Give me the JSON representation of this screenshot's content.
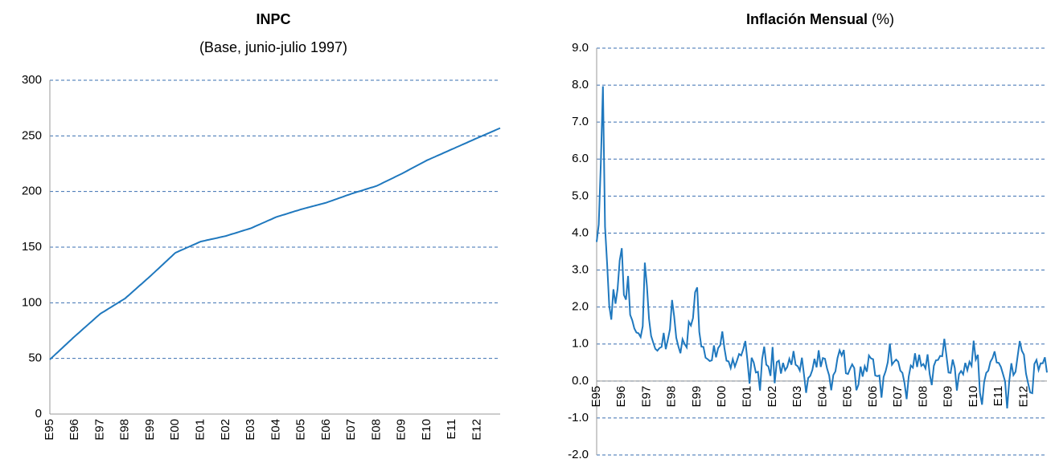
{
  "chart_data": [
    {
      "type": "line",
      "title": "INPC",
      "subtitle": "(Base, junio-julio 1997)",
      "categories": [
        "E95",
        null,
        null,
        null,
        null,
        null,
        null,
        null,
        null,
        null,
        null,
        null,
        "E96",
        null,
        null,
        null,
        null,
        null,
        null,
        null,
        null,
        null,
        null,
        null,
        "E97",
        null,
        null,
        null,
        null,
        null,
        null,
        null,
        null,
        null,
        null,
        null,
        "E98",
        null,
        null,
        null,
        null,
        null,
        null,
        null,
        null,
        null,
        null,
        null,
        "E99",
        null,
        null,
        null,
        null,
        null,
        null,
        null,
        null,
        null,
        null,
        null,
        "E00",
        null,
        null,
        null,
        null,
        null,
        null,
        null,
        null,
        null,
        null,
        null,
        "E01",
        null,
        null,
        null,
        null,
        null,
        null,
        null,
        null,
        null,
        null,
        null,
        "E02",
        null,
        null,
        null,
        null,
        null,
        null,
        null,
        null,
        null,
        null,
        null,
        "E03",
        null,
        null,
        null,
        null,
        null,
        null,
        null,
        null,
        null,
        null,
        null,
        "E04",
        null,
        null,
        null,
        null,
        null,
        null,
        null,
        null,
        null,
        null,
        null,
        "E05",
        null,
        null,
        null,
        null,
        null,
        null,
        null,
        null,
        null,
        null,
        null,
        "E06",
        null,
        null,
        null,
        null,
        null,
        null,
        null,
        null,
        null,
        null,
        null,
        "E07",
        null,
        null,
        null,
        null,
        null,
        null,
        null,
        null,
        null,
        null,
        null,
        "E08",
        null,
        null,
        null,
        null,
        null,
        null,
        null,
        null,
        null,
        null,
        null,
        "E09",
        null,
        null,
        null,
        null,
        null,
        null,
        null,
        null,
        null,
        null,
        null,
        "E10",
        null,
        null,
        null,
        null,
        null,
        null,
        null,
        null,
        null,
        null,
        null,
        "E11",
        null,
        null,
        null,
        null,
        null,
        null,
        null,
        null,
        null,
        null,
        null,
        "E12",
        null,
        null,
        null,
        null,
        null,
        null,
        null,
        null,
        null,
        null,
        null
      ],
      "values": [
        49,
        50.8,
        52.5,
        54.3,
        56,
        57.8,
        59.5,
        61.3,
        63,
        64.8,
        66.5,
        68.3,
        70,
        71.7,
        73.3,
        75,
        76.7,
        78.3,
        80,
        81.7,
        83.3,
        85,
        86.7,
        88.3,
        90,
        91.2,
        92.3,
        93.5,
        94.7,
        95.8,
        97,
        98.2,
        99.3,
        100.5,
        101.7,
        102.8,
        104,
        105.7,
        107.3,
        109,
        110.7,
        112.3,
        114,
        115.7,
        117.3,
        119,
        120.7,
        122.3,
        124,
        125.8,
        127.5,
        129.3,
        131,
        132.8,
        134.5,
        136.3,
        138,
        139.8,
        141.5,
        143.3,
        145,
        145.8,
        146.7,
        147.5,
        148.3,
        149.2,
        150,
        150.8,
        151.7,
        152.5,
        153.3,
        154.2,
        155,
        155.4,
        155.8,
        156.3,
        156.7,
        157.1,
        157.5,
        157.9,
        158.3,
        158.8,
        159.2,
        159.6,
        160,
        160.6,
        161.2,
        161.8,
        162.3,
        162.9,
        163.5,
        164.1,
        164.7,
        165.3,
        165.8,
        166.4,
        167,
        167.8,
        168.7,
        169.5,
        170.3,
        171.2,
        172,
        172.8,
        173.7,
        174.5,
        175.3,
        176.2,
        177,
        177.6,
        178.2,
        178.8,
        179.3,
        179.9,
        180.5,
        181.1,
        181.7,
        182.3,
        182.8,
        183.4,
        184,
        184.5,
        185,
        185.5,
        186,
        186.5,
        187,
        187.5,
        188,
        188.5,
        189,
        189.5,
        190,
        190.7,
        191.3,
        192,
        192.7,
        193.3,
        194,
        194.7,
        195.3,
        196,
        196.7,
        197.3,
        198,
        198.6,
        199.2,
        199.8,
        200.3,
        200.9,
        201.5,
        202.1,
        202.7,
        203.3,
        203.8,
        204.4,
        205,
        205.9,
        206.8,
        207.8,
        208.7,
        209.6,
        210.5,
        211.4,
        212.3,
        213.3,
        214.2,
        215.1,
        216,
        217,
        218,
        219,
        220,
        221,
        222,
        223,
        224,
        225,
        226,
        227,
        228,
        228.8,
        229.7,
        230.5,
        231.3,
        232.2,
        233,
        233.8,
        234.7,
        235.5,
        236.3,
        237.2,
        238,
        238.8,
        239.7,
        240.5,
        241.3,
        242.2,
        243,
        243.8,
        244.7,
        245.5,
        246.3,
        247.2,
        248,
        248.8,
        249.6,
        250.5,
        251.3,
        252.1,
        252.9,
        253.7,
        254.5,
        255.4,
        256.2,
        257
      ],
      "color": "#1f78be",
      "ylim": [
        0,
        300
      ],
      "yticks": [
        0,
        50,
        100,
        150,
        200,
        250,
        300
      ],
      "grid": true
    },
    {
      "type": "line",
      "title": "Inflación Mensual",
      "title_unit": "(%)",
      "categories": [
        "E95",
        null,
        null,
        null,
        null,
        null,
        null,
        null,
        null,
        null,
        null,
        null,
        "E96",
        null,
        null,
        null,
        null,
        null,
        null,
        null,
        null,
        null,
        null,
        null,
        "E97",
        null,
        null,
        null,
        null,
        null,
        null,
        null,
        null,
        null,
        null,
        null,
        "E98",
        null,
        null,
        null,
        null,
        null,
        null,
        null,
        null,
        null,
        null,
        null,
        "E99",
        null,
        null,
        null,
        null,
        null,
        null,
        null,
        null,
        null,
        null,
        null,
        "E00",
        null,
        null,
        null,
        null,
        null,
        null,
        null,
        null,
        null,
        null,
        null,
        "E01",
        null,
        null,
        null,
        null,
        null,
        null,
        null,
        null,
        null,
        null,
        null,
        "E02",
        null,
        null,
        null,
        null,
        null,
        null,
        null,
        null,
        null,
        null,
        null,
        "E03",
        null,
        null,
        null,
        null,
        null,
        null,
        null,
        null,
        null,
        null,
        null,
        "E04",
        null,
        null,
        null,
        null,
        null,
        null,
        null,
        null,
        null,
        null,
        null,
        "E05",
        null,
        null,
        null,
        null,
        null,
        null,
        null,
        null,
        null,
        null,
        null,
        "E06",
        null,
        null,
        null,
        null,
        null,
        null,
        null,
        null,
        null,
        null,
        null,
        "E07",
        null,
        null,
        null,
        null,
        null,
        null,
        null,
        null,
        null,
        null,
        null,
        "E08",
        null,
        null,
        null,
        null,
        null,
        null,
        null,
        null,
        null,
        null,
        null,
        "E09",
        null,
        null,
        null,
        null,
        null,
        null,
        null,
        null,
        null,
        null,
        null,
        "E10",
        null,
        null,
        null,
        null,
        null,
        null,
        null,
        null,
        null,
        null,
        null,
        "E11",
        null,
        null,
        null,
        null,
        null,
        null,
        null,
        null,
        null,
        null,
        null,
        "E12",
        null,
        null,
        null,
        null,
        null,
        null,
        null,
        null,
        null,
        null,
        null
      ],
      "values": [
        3.76,
        4.23,
        5.9,
        7.97,
        4.17,
        3.17,
        2.04,
        1.66,
        2.48,
        2.09,
        2.49,
        3.26,
        3.59,
        2.33,
        2.2,
        2.84,
        1.79,
        1.64,
        1.42,
        1.31,
        1.29,
        1.19,
        1.48,
        3.2,
        2.57,
        1.68,
        1.22,
        1.04,
        0.87,
        0.82,
        0.89,
        0.92,
        1.3,
        0.86,
        1.12,
        1.4,
        2.19,
        1.75,
        1.17,
        0.94,
        0.75,
        1.13,
        1,
        0.91,
        1.6,
        1.5,
        1.7,
        2.4,
        2.53,
        1.33,
        0.93,
        0.92,
        0.63,
        0.59,
        0.54,
        0.56,
        0.96,
        0.64,
        0.89,
        0.97,
        1.34,
        0.89,
        0.55,
        0.53,
        0.35,
        0.59,
        0.39,
        0.55,
        0.73,
        0.69,
        0.86,
        1.08,
        0.55,
        -0.07,
        0.63,
        0.5,
        0.23,
        0.25,
        -0.26,
        0.59,
        0.93,
        0.44,
        0.39,
        0.14,
        0.92,
        -0.06,
        0.51,
        0.55,
        0.2,
        0.49,
        0.29,
        0.38,
        0.6,
        0.44,
        0.81,
        0.44,
        0.4,
        0.28,
        0.63,
        0.17,
        -0.32,
        0.08,
        0.14,
        0.3,
        0.6,
        0.37,
        0.83,
        0.38,
        0.62,
        0.6,
        0.34,
        0.15,
        -0.25,
        0.16,
        0.26,
        0.62,
        0.83,
        0.69,
        0.84,
        0.21,
        0.19,
        0.33,
        0.45,
        0.35,
        -0.25,
        -0.1,
        0.39,
        0.12,
        0.4,
        0.25,
        0.69,
        0.61,
        0.59,
        0.15,
        0.13,
        0.15,
        -0.45,
        0.11,
        0.27,
        0.51,
        1.01,
        0.44,
        0.52,
        0.58,
        0.52,
        0.28,
        0.22,
        -0.06,
        -0.49,
        0.12,
        0.42,
        0.36,
        0.75,
        0.38,
        0.71,
        0.41,
        0.46,
        0.34,
        0.72,
        0.19,
        -0.11,
        0.41,
        0.56,
        0.57,
        0.68,
        0.67,
        1.14,
        0.69,
        0.23,
        0.22,
        0.58,
        0.35,
        -0.26,
        0.18,
        0.27,
        0.18,
        0.49,
        0.29,
        0.52,
        0.41,
        1.09,
        0.58,
        0.71,
        -0.32,
        -0.64,
        -0.03,
        0.22,
        0.28,
        0.52,
        0.62,
        0.8,
        0.5,
        0.49,
        0.38,
        0.19,
        -0.01,
        -0.74,
        0,
        0.48,
        0.16,
        0.25,
        0.67,
        1.08,
        0.82,
        0.71,
        0.2,
        -0.06,
        -0.31,
        -0.33,
        0.46,
        0.57,
        0.3,
        0.48,
        0.48,
        0.64,
        0.23
      ],
      "color": "#1f78be",
      "ylim": [
        -2,
        9
      ],
      "yticks": [
        {
          "value": -2,
          "label": "-2.0"
        },
        {
          "value": -1,
          "label": "-1.0"
        },
        {
          "value": 0,
          "label": "0.0"
        },
        {
          "value": 1,
          "label": "1.0"
        },
        {
          "value": 2,
          "label": "2.0"
        },
        {
          "value": 3,
          "label": "3.0"
        },
        {
          "value": 4,
          "label": "4.0"
        },
        {
          "value": 5,
          "label": "5.0"
        },
        {
          "value": 6,
          "label": "6.0"
        },
        {
          "value": 7,
          "label": "7.0"
        },
        {
          "value": 8,
          "label": "8.0"
        },
        {
          "value": 9,
          "label": "9.0"
        }
      ],
      "grid": true
    }
  ]
}
